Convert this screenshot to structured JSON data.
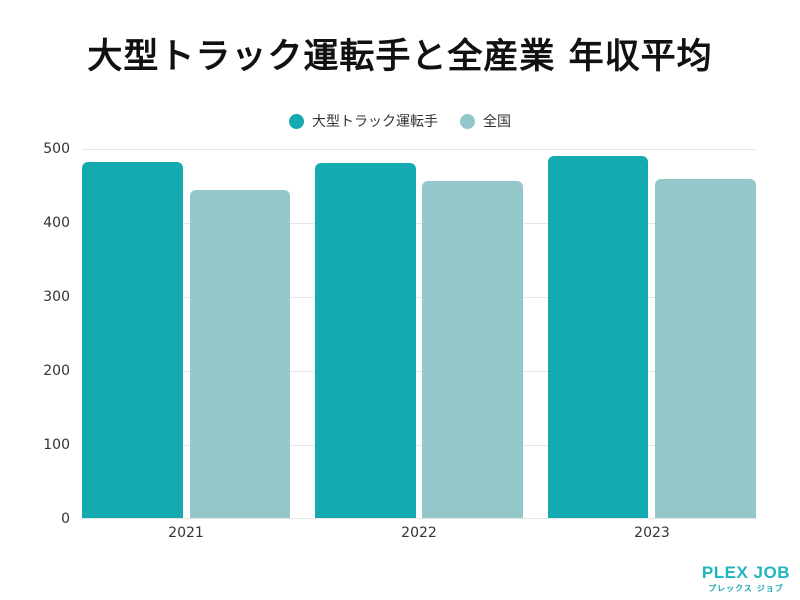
{
  "title": "大型トラック運転手と全産業 年収平均",
  "legend": [
    {
      "label": "大型トラック運転手",
      "color": "#15a9b0"
    },
    {
      "label": "全国",
      "color": "#93c7ca"
    }
  ],
  "y_axis": {
    "ticks": [
      "0",
      "100",
      "200",
      "300",
      "400",
      "500"
    ]
  },
  "x_axis": {
    "ticks": [
      "2021",
      "2022",
      "2023"
    ]
  },
  "logo": {
    "main": "PLEX JOB",
    "sub": "プレックス ジョブ"
  },
  "chart_data": {
    "type": "bar",
    "title": "大型トラック運転手と全産業 年収平均",
    "xlabel": "",
    "ylabel": "",
    "categories": [
      "2021",
      "2022",
      "2023"
    ],
    "series": [
      {
        "name": "大型トラック運転手",
        "values": [
          482,
          481,
          491
        ],
        "color": "#15a9b0"
      },
      {
        "name": "全国",
        "values": [
          445,
          457,
          460
        ],
        "color": "#93c7ca"
      }
    ],
    "ylim": [
      0,
      500
    ],
    "yticks": [
      0,
      100,
      200,
      300,
      400,
      500
    ],
    "grid": true,
    "legend_position": "top"
  }
}
